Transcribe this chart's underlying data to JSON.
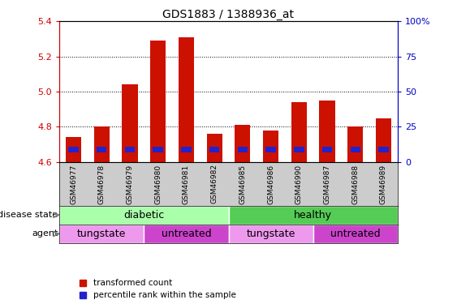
{
  "title": "GDS1883 / 1388936_at",
  "samples": [
    "GSM46977",
    "GSM46978",
    "GSM46979",
    "GSM46980",
    "GSM46981",
    "GSM46982",
    "GSM46985",
    "GSM46986",
    "GSM46990",
    "GSM46987",
    "GSM46988",
    "GSM46989"
  ],
  "transformed_count": [
    4.74,
    4.8,
    5.04,
    5.29,
    5.31,
    4.76,
    4.81,
    4.78,
    4.94,
    4.95,
    4.8,
    4.85
  ],
  "blue_bar_bottom": 4.655,
  "blue_bar_height": 0.03,
  "ymin": 4.6,
  "ymax": 5.4,
  "yticks_left": [
    4.6,
    4.8,
    5.0,
    5.2,
    5.4
  ],
  "yticks_right": [
    0,
    25,
    50,
    75,
    100
  ],
  "yticks_right_labels": [
    "0",
    "25",
    "50",
    "75",
    "100%"
  ],
  "disease_state_groups": [
    {
      "label": "diabetic",
      "start": 0,
      "end": 6,
      "color": "#aaffaa"
    },
    {
      "label": "healthy",
      "start": 6,
      "end": 12,
      "color": "#55cc55"
    }
  ],
  "agent_groups": [
    {
      "label": "tungstate",
      "start": 0,
      "end": 3,
      "color": "#ee99ee"
    },
    {
      "label": "untreated",
      "start": 3,
      "end": 6,
      "color": "#cc44cc"
    },
    {
      "label": "tungstate",
      "start": 6,
      "end": 9,
      "color": "#ee99ee"
    },
    {
      "label": "untreated",
      "start": 9,
      "end": 12,
      "color": "#cc44cc"
    }
  ],
  "bar_color": "#cc1100",
  "blue_color": "#2222cc",
  "axis_left_color": "#cc0000",
  "axis_right_color": "#0000cc",
  "label_disease_state": "disease state",
  "label_agent": "agent",
  "legend_items": [
    "transformed count",
    "percentile rank within the sample"
  ],
  "sample_bg_color": "#cccccc",
  "plot_bg_color": "#ffffff"
}
